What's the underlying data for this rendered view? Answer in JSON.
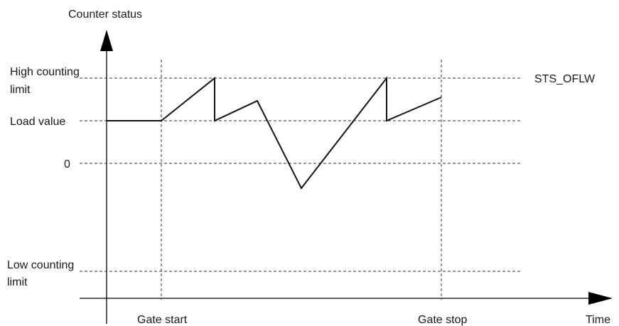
{
  "diagram": {
    "y_axis_label": "Counter status",
    "x_axis_label": "Time",
    "levels": {
      "high_counting_limit": [
        "High counting",
        "limit"
      ],
      "load_value": "Load value",
      "zero": "0",
      "low_counting_limit": [
        "Low counting",
        "limit"
      ]
    },
    "overflow_label": "STS_OFLW",
    "gate_start_label": "Gate start",
    "gate_stop_label": "Gate stop"
  }
}
